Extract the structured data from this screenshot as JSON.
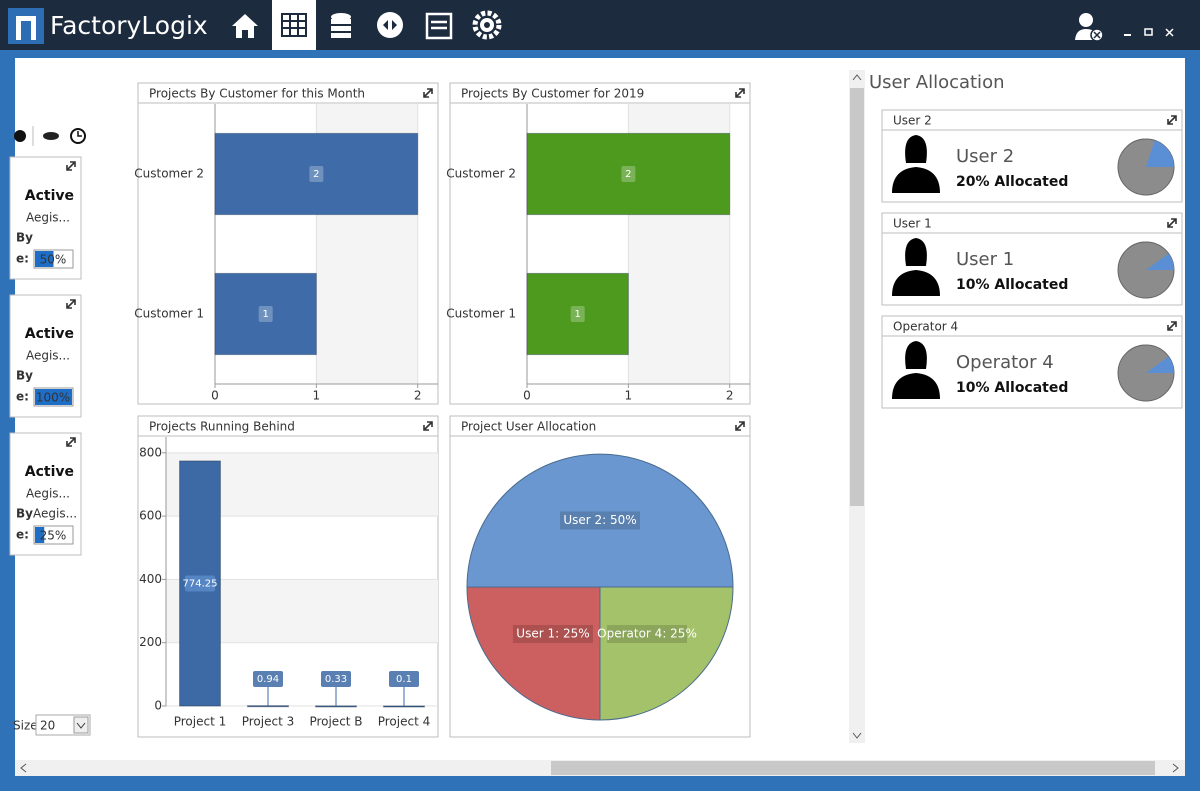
{
  "header": {
    "app_name": "FactoryLogix"
  },
  "left_panel": {
    "cards": [
      {
        "status": "Active",
        "customer": "Aegis...",
        "by_label": "By",
        "progress_label": "e:",
        "progress": {
          "value": 50,
          "label": "50%"
        }
      },
      {
        "status": "Active",
        "customer": "Aegis...",
        "by_label": "By",
        "progress_label": "e:",
        "progress": {
          "value": 100,
          "label": "100%"
        }
      },
      {
        "status": "Active",
        "customer": "Aegis...",
        "by_label": "By",
        "by_value": "Aegis...",
        "progress_label": "e:",
        "progress": {
          "value": 25,
          "label": "25%"
        }
      }
    ],
    "page_size_label": "Size",
    "page_size": "20"
  },
  "chart_data": [
    {
      "type": "hbar",
      "title": "Projects By Customer for this Month",
      "categories": [
        "Customer 2",
        "Customer 1"
      ],
      "values": [
        2,
        1
      ],
      "color": "#3f6ca8",
      "xlim": [
        0,
        2.2
      ],
      "xticks": [
        0,
        1,
        2
      ],
      "grid": true
    },
    {
      "type": "hbar",
      "title": "Projects By Customer for 2019",
      "categories": [
        "Customer 2",
        "Customer 1"
      ],
      "values": [
        2,
        1
      ],
      "color": "#4e9a1f",
      "xlim": [
        0,
        2.2
      ],
      "xticks": [
        0,
        1,
        2
      ],
      "grid": true
    },
    {
      "type": "bar",
      "title": "Projects Running Behind",
      "categories": [
        "Project 1",
        "Project 3",
        "Project B",
        "Project 4"
      ],
      "values": [
        774.25,
        0.94,
        0.33,
        0.1
      ],
      "color": "#3d69a5",
      "ylim": [
        0,
        850
      ],
      "yticks": [
        0,
        200,
        400,
        600,
        800
      ],
      "grid": true
    },
    {
      "type": "pie",
      "title": "Project User Allocation",
      "values": [
        50,
        25,
        25
      ],
      "value_labels": [
        "User 2: 50%",
        "User 1: 25%",
        "Operator 4: 25%"
      ],
      "colors": [
        "#6a97cf",
        "#cc5f5f",
        "#a4c26a"
      ]
    }
  ],
  "user_allocation": {
    "title": "User Allocation",
    "users": [
      {
        "card_title": "User 2",
        "name": "User 2",
        "allocated": {
          "value": 20,
          "label": "20% Allocated"
        }
      },
      {
        "card_title": "User 1",
        "name": "User 1",
        "allocated": {
          "value": 10,
          "label": "10% Allocated"
        }
      },
      {
        "card_title": "Operator 4",
        "name": "Operator 4",
        "allocated": {
          "value": 10,
          "label": "10% Allocated"
        }
      }
    ]
  }
}
